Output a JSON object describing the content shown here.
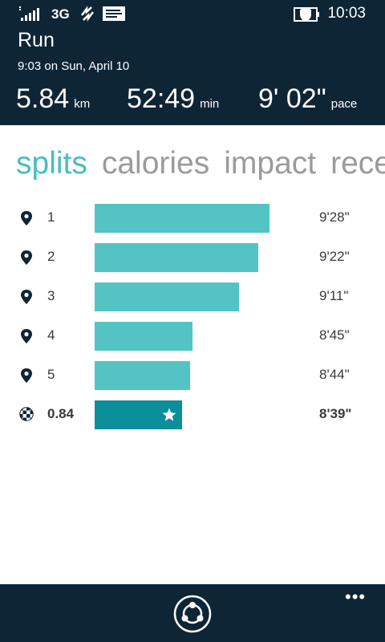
{
  "status_bar": {
    "network": "3G",
    "time": "10:03",
    "icons": [
      "signal-icon",
      "sync-icon",
      "message-icon",
      "battery-saver-icon"
    ]
  },
  "activity": {
    "title": "Run",
    "datetime": "9:03 on Sun, April 10"
  },
  "stats": {
    "distance": {
      "value": "5.84",
      "unit": "km"
    },
    "duration": {
      "value": "52:49",
      "unit": "min"
    },
    "pace": {
      "value": "9' 02\"",
      "unit": "pace"
    }
  },
  "tabs": [
    {
      "label": "splits",
      "active": true
    },
    {
      "label": "calories",
      "active": false
    },
    {
      "label": "impact",
      "active": false
    },
    {
      "label": "rece",
      "active": false
    }
  ],
  "splits": [
    {
      "label": "1",
      "pace": "9'28\"",
      "bar_fraction": 0.64,
      "icon": "location-pin-icon",
      "final": false
    },
    {
      "label": "2",
      "pace": "9'22\"",
      "bar_fraction": 0.6,
      "icon": "location-pin-icon",
      "final": false
    },
    {
      "label": "3",
      "pace": "9'11\"",
      "bar_fraction": 0.53,
      "icon": "location-pin-icon",
      "final": false
    },
    {
      "label": "4",
      "pace": "8'45\"",
      "bar_fraction": 0.36,
      "icon": "location-pin-icon",
      "final": false
    },
    {
      "label": "5",
      "pace": "8'44\"",
      "bar_fraction": 0.35,
      "icon": "location-pin-icon",
      "final": false
    },
    {
      "label": "0.84",
      "pace": "8'39\"",
      "bar_fraction": 0.32,
      "icon": "finish-flag-icon",
      "final": true
    }
  ],
  "app_bar": {
    "more_label": "•••",
    "icons": [
      "share-icon",
      "more-icon"
    ]
  },
  "colors": {
    "header_bg": "#0e2536",
    "accent": "#4cbcc0",
    "bar": "#54c3c4",
    "bar_final": "#0b8f9a",
    "tab_inactive": "#9b9b9b"
  }
}
